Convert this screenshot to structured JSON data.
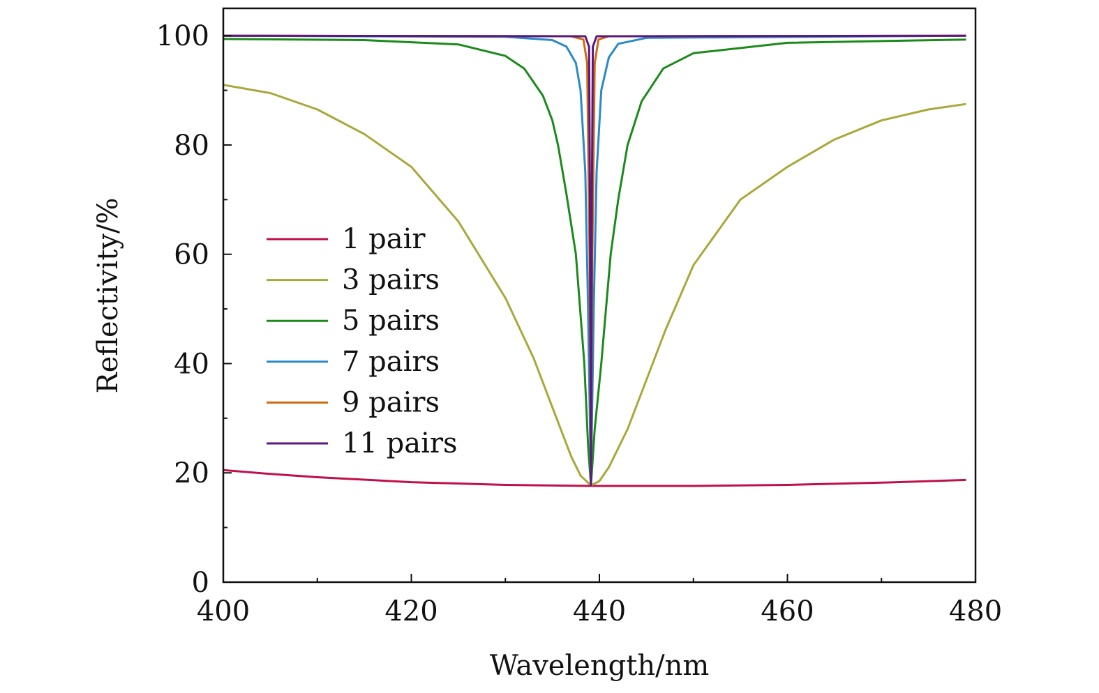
{
  "chart_data": {
    "type": "line",
    "title": "",
    "xlabel": "Wavelength/nm",
    "ylabel": "Reflectivity/%",
    "xlim": [
      400,
      480
    ],
    "ylim": [
      0,
      105
    ],
    "xticks": [
      400,
      420,
      440,
      460,
      480
    ],
    "yticks": [
      0,
      20,
      40,
      60,
      80,
      100
    ],
    "x_minor_step": 10,
    "y_minor_step": 10,
    "grid": false,
    "legend_position": "center-left",
    "series": [
      {
        "name": "1 pair",
        "color": "#c0104a",
        "x": [
          400,
          405,
          410,
          420,
          430,
          439.1,
          450,
          460,
          470,
          479
        ],
        "y": [
          20.5,
          19.8,
          19.2,
          18.3,
          17.8,
          17.6,
          17.6,
          17.8,
          18.2,
          18.7
        ]
      },
      {
        "name": "3 pairs",
        "color": "#a8a83a",
        "x": [
          400,
          405,
          410,
          415,
          420,
          425,
          430,
          433,
          435,
          437,
          438,
          439.1,
          440,
          441,
          443,
          445,
          447,
          450,
          455,
          460,
          465,
          470,
          475,
          479
        ],
        "y": [
          91,
          89.5,
          86.5,
          82,
          76,
          66,
          52,
          41,
          32,
          23,
          19.5,
          17.7,
          18.5,
          21,
          28,
          37,
          46,
          58,
          70,
          76,
          81,
          84.5,
          86.5,
          87.5
        ]
      },
      {
        "name": "5 pairs",
        "color": "#1a8a1a",
        "x": [
          400,
          415,
          425,
          430,
          432,
          434,
          435,
          435.6,
          436.5,
          437.5,
          438.4,
          438.8,
          439.1,
          439.5,
          440.2,
          441.2,
          442,
          443,
          444.5,
          446.8,
          450,
          460,
          479
        ],
        "y": [
          99.4,
          99.2,
          98.4,
          96.3,
          94,
          89,
          84.5,
          80,
          71,
          60,
          40,
          25,
          17.7,
          28,
          40,
          60,
          70,
          80,
          88,
          94,
          96.8,
          98.7,
          99.3
        ]
      },
      {
        "name": "7 pairs",
        "color": "#2a8ac8",
        "x": [
          400,
          430,
          435,
          436.5,
          437.5,
          438,
          438.5,
          438.8,
          439.1,
          439.4,
          439.7,
          440.2,
          441,
          442,
          445,
          479
        ],
        "y": [
          100,
          99.8,
          99.2,
          98,
          95,
          90,
          75,
          50,
          17.7,
          50,
          75,
          90,
          96,
          98.5,
          99.6,
          100
        ]
      },
      {
        "name": "9 pairs",
        "color": "#d06a10",
        "x": [
          400,
          437,
          438.3,
          438.7,
          438.95,
          439.1,
          439.25,
          439.5,
          439.9,
          441,
          479
        ],
        "y": [
          100,
          99.9,
          99.3,
          95,
          60,
          17.7,
          60,
          95,
          99.3,
          99.9,
          100
        ]
      },
      {
        "name": "11 pairs",
        "color": "#5a1880",
        "x": [
          400,
          438.5,
          438.9,
          439.0,
          439.1,
          439.2,
          439.3,
          439.7,
          479
        ],
        "y": [
          100,
          99.9,
          98,
          70,
          17.7,
          70,
          98,
          99.9,
          100
        ]
      }
    ]
  }
}
